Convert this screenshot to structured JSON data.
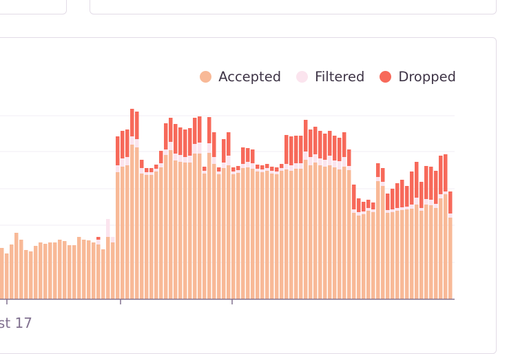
{
  "colors": {
    "accepted": "#f8b997",
    "filtered": "#fbe4ee",
    "dropped": "#f7695a",
    "axis": "#80708f",
    "grid": "#f1edf4",
    "border": "#e2dbe6"
  },
  "chart_data": {
    "type": "bar",
    "stacked": true,
    "legend_position": "top-right",
    "grid": true,
    "xlabel": "",
    "ylabel": "",
    "x_tick_labels": [
      "st 17"
    ],
    "series": [
      {
        "name": "Accepted",
        "values": [
          0.78,
          0.75,
          0.79,
          0.7,
          0.75,
          0.83,
          0.62,
          0.79,
          0.71,
          0.77,
          0.78,
          0.77,
          0.83,
          0.83,
          0.83,
          0.9,
          0.9,
          0.92,
          1.02,
          0.88,
          0.87,
          0.93,
          0.84,
          0.73,
          0.83,
          0.8,
          0.91,
          0.92,
          0.9,
          0.93,
          0.9,
          0.96,
          0.94,
          0.97,
          0.96,
          0.89,
          0.8,
          0.81,
          0.85,
          0.98,
          0.96,
          0.97,
          0.93,
          0.96,
          0.93,
          0.96,
          0.94,
          0.87,
          0.97,
          0.93,
          0.91,
          0.92,
          0.89,
          0.96,
          0.96,
          0.95,
          0.92,
          0.81,
          0.97,
          1.03,
          0.96,
          0.96,
          1.09,
          1.0,
          0.95,
          0.95,
          0.91,
          0.87,
          0.79,
          0.79,
          0.81,
          0.84,
          0.76,
          0.74,
          0.77,
          0.82,
          0.77,
          0.88,
          0.7,
          0.83,
          0.87,
          0.77,
          0.82,
          0.88,
          0.86,
          0.88,
          0.82,
          0.86,
          0.87,
          0.86,
          0.88,
          0.85,
          0.87,
          0.84,
          0.94,
          0.92,
          0.93,
          0.84,
          0.94,
          0.86,
          0.87,
          0.89,
          0.82,
          0.84,
          0.88,
          0.91,
          0.91,
          0.9,
          0.89,
          0.86,
          0.86,
          0.89,
          0.9,
          0.88,
          0.84,
          0.87,
          0.84,
          0.8,
          0.73,
          0.73,
          0.77,
          0.74,
          0.73,
          0.74,
          0.71,
          0.73,
          0.73,
          0.74,
          0.73,
          0.75,
          0.72,
          0.73,
          0.74,
          0.75,
          0.74,
          0.73,
          0.75,
          0.73,
          0.74,
          0.75,
          0.73,
          0.77,
          0.74,
          0.73,
          0.76,
          0.75,
          0.73,
          0.74,
          0.73,
          0.75,
          0.72,
          0.73,
          0.75,
          0.71,
          0.72,
          0.73,
          0.72,
          0.75,
          0.71,
          0.72,
          0.74,
          0.72,
          0.73,
          0.71,
          0.72,
          0.71,
          0.7,
          0.72,
          0.7,
          0.69,
          0.72,
          0.7,
          0.71,
          0.69,
          0.7,
          0.71,
          0.72,
          0.7,
          0.75,
          0.76,
          0.77,
          0.79,
          0.8,
          0.85,
          0.78,
          0.83,
          0.8,
          0.85,
          0.87,
          0.82,
          0.84,
          0.86,
          0.81,
          0.85,
          0.88,
          0.82,
          0.8,
          0.84,
          0.87,
          0.79,
          0.86,
          0.89,
          0.77,
          0.82,
          0.78,
          0.8,
          0.82,
          0.84,
          0.86,
          0.89,
          0.9,
          0.82,
          0.92,
          0.8,
          0.82,
          0.78,
          0.74,
          0.79,
          0.77,
          0.82,
          0.72,
          0.86,
          0.86,
          0.89,
          0.88,
          0.78,
          0.82,
          0.8,
          0.72,
          0.75,
          0.79,
          0.82,
          0.79,
          0.82,
          0.84,
          0.86,
          0.78,
          0.84,
          0.86,
          0.82,
          0.88,
          0.86,
          0.83,
          0.8,
          0.78,
          0.84,
          0.82,
          0.83,
          0.81,
          0.79,
          0.82,
          0.85,
          0.86,
          0.88,
          0.83,
          0.82,
          0.86,
          0.84,
          0.85,
          0.88,
          0.82,
          0.84,
          0.85,
          0.83,
          0.82,
          0.8,
          0.79,
          0.83,
          0.84,
          0.81,
          0.82,
          0.86,
          0.81,
          0.8,
          0.82,
          0.85,
          0.84,
          0.87,
          0.84,
          0.82,
          0.83,
          0.85,
          0.82,
          0.81,
          0.78,
          0.8,
          0.79,
          0.83,
          0.85,
          0.78,
          0.88,
          0.82,
          0.85,
          0.81,
          0.83,
          0.85,
          0.84,
          0.8,
          0.82,
          0.78,
          0.77,
          0.75,
          0.81,
          0.79,
          0.84,
          0.8,
          0.82,
          0.79,
          0.81,
          0.79,
          0.78,
          0.8,
          0.77,
          0.74,
          0.76,
          0.78,
          0.79,
          0.72,
          0.77,
          0.74,
          0.75,
          0.73,
          0.76,
          0.73,
          0.75,
          0.77,
          0.74,
          0.76,
          0.73,
          0.79,
          0.82,
          0.77,
          0.79,
          0.76,
          0.78,
          0.76,
          0.78,
          0.77,
          0.78,
          0.76,
          0.78,
          0.81,
          0.77,
          0.79,
          0.8,
          0.78,
          0.81,
          0.77,
          0.82,
          0.81,
          0.75,
          0.78,
          0.8,
          0.77,
          0.79,
          0.81,
          0.79,
          0.82,
          0.83,
          0.84,
          0.82,
          0.85,
          0.86,
          0.8,
          0.88,
          0.85,
          0.87,
          0.83,
          0.85,
          0.89,
          0.86,
          0.85,
          0.84,
          0.88,
          0.84,
          0.85,
          0.86,
          0.82,
          0.85,
          0.88,
          0.84,
          0.86,
          0.83,
          0.83,
          0.85,
          0.86,
          0.88,
          0.84,
          0.85,
          0.87,
          0.83,
          0.86,
          0.84,
          0.87,
          0.87,
          0.82,
          0.83,
          0.84,
          0.85,
          0.84,
          0.82,
          0.8,
          0.79,
          0.82,
          0.76,
          0.84,
          0.84,
          0.79,
          0.8,
          0.81,
          0.78,
          0.8,
          0.77,
          0.82,
          0.83,
          0.84,
          0.86,
          0.81,
          0.8,
          0.79,
          0.8,
          0.83,
          0.85,
          0.81,
          0.8,
          0.86,
          0.8,
          0.8,
          0.77,
          0.79,
          0.79,
          0.8,
          0.82,
          0.79,
          0.8,
          0.82,
          0.81,
          0.84,
          0.79,
          0.79,
          0.8,
          0.81,
          0.78,
          0.83,
          0.86,
          0.84,
          0.85,
          0.82,
          0.81,
          0.81,
          0.77,
          0.79,
          0.81,
          0.78,
          0.8,
          0.79,
          0.81,
          0.75,
          0.79,
          0.78,
          0.8,
          0.79,
          0.81,
          0.78,
          0.77,
          0.79,
          0.8,
          0.79,
          0.8,
          0.78,
          0.74,
          0.78,
          0.79,
          0.75,
          0.77,
          0.76,
          0.74,
          0.73,
          0.77,
          0.79,
          0.81,
          0.75,
          0.78,
          0.76,
          0.79,
          0.77,
          0.76,
          0.79,
          0.77,
          0.73,
          0.79,
          0.78,
          0.78,
          0.76,
          0.74,
          0.78,
          0.79,
          0.77,
          0.78,
          0.78,
          0.75,
          0.77,
          0.78,
          0.8,
          0.77,
          0.78,
          0.8,
          0.82,
          0.83,
          0.8,
          0.8,
          0.76,
          0.79,
          0.77,
          0.81,
          0.82,
          0.81,
          0.84,
          0.83,
          0.8,
          0.82,
          0.81,
          0.8,
          0.83,
          0.78,
          0.82,
          0.83,
          0.8,
          0.8,
          0.83,
          0.78,
          0.8,
          0.83,
          0.86,
          0.88,
          0.85,
          0.89,
          0.87,
          0.83,
          0.85,
          0.86,
          0.88,
          0.85,
          0.87,
          0.82,
          0.84,
          0.85,
          0.82,
          0.84,
          0.87,
          0.87,
          0.83,
          0.87,
          0.87,
          0.82,
          0.86,
          0.88,
          0.85,
          0.86,
          0.86,
          0.82,
          0.84,
          0.8,
          0.81,
          0.82,
          0.84,
          0.84,
          0.86,
          0.8,
          0.81,
          0.85,
          0.83,
          0.85,
          0.83,
          0.82,
          0.8,
          0.83,
          0.82,
          0.84,
          0.83,
          0.86,
          0.82,
          0.8,
          0.81,
          0.79,
          0.78
        ]
      }
    ]
  },
  "legend": {
    "accepted": "Accepted",
    "filtered": "Filtered",
    "dropped": "Dropped"
  }
}
